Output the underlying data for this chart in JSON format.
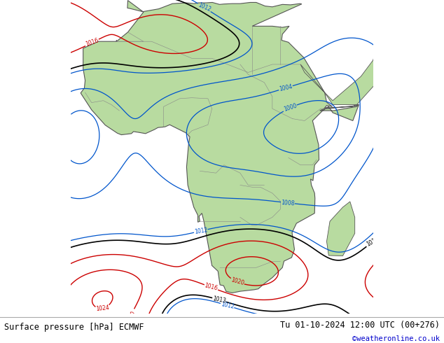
{
  "title_left": "Surface pressure [hPa] ECMWF",
  "title_right": "Tu 01-10-2024 12:00 UTC (00+276)",
  "copyright": "©weatheronline.co.uk",
  "bg_color": "#ffffff",
  "land_color": "#b8dba0",
  "ocean_color": "#e8e8e8",
  "border_color": "#888888",
  "coast_color": "#555555",
  "red": "#cc0000",
  "blue": "#0055cc",
  "black": "#000000",
  "font_color_copyright": "#0000cc",
  "map_extent": [
    -20,
    55,
    -40,
    38
  ],
  "figsize": [
    6.34,
    4.9
  ],
  "dpi": 100
}
